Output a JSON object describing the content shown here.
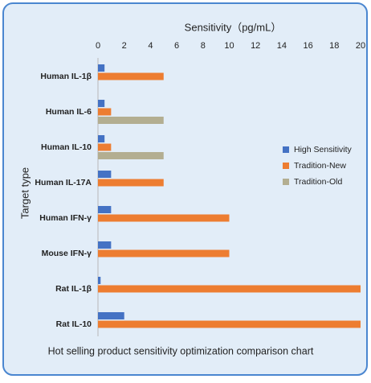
{
  "chart_data": {
    "type": "bar",
    "orientation": "horizontal",
    "xlabel": "Sensitivity（pg/mL）",
    "ylabel": "Target type",
    "caption": "Hot selling product sensitivity optimization comparison chart",
    "categories": [
      "Human IL-1β",
      "Human IL-6",
      "Human IL-10",
      "Human IL-17A",
      "Human IFN-γ",
      "Mouse IFN-γ",
      "Rat IL-1β",
      "Rat IL-10"
    ],
    "series": [
      {
        "name": "High Sensitivity",
        "color": "#4472c4",
        "values": [
          0.5,
          0.5,
          0.5,
          1,
          1,
          1,
          0.2,
          2
        ]
      },
      {
        "name": "Tradition-New",
        "color": "#ed7d31",
        "values": [
          5,
          1,
          1,
          5,
          10,
          10,
          20,
          20
        ]
      },
      {
        "name": "Tradition-Old",
        "color": "#b3ae91",
        "values": [
          null,
          5,
          5,
          null,
          null,
          null,
          null,
          null
        ]
      }
    ],
    "xlim": [
      0,
      20
    ],
    "xticks": [
      0,
      2,
      4,
      6,
      8,
      10,
      12,
      14,
      16,
      18,
      20
    ],
    "legend": "right"
  }
}
